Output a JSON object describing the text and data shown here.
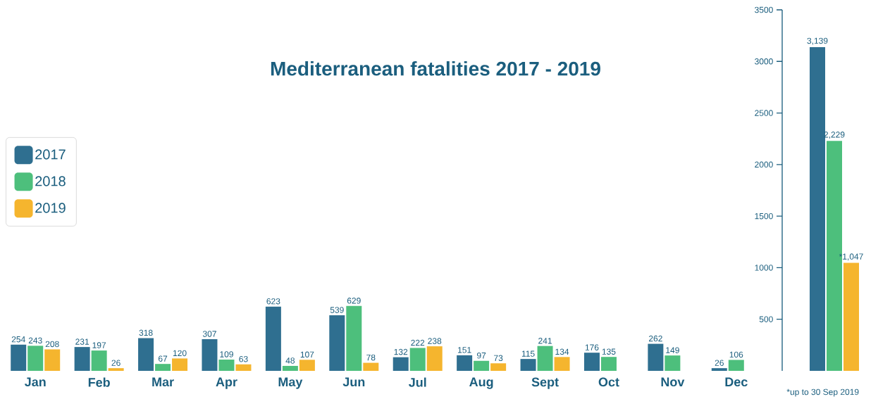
{
  "chart_data": [
    {
      "type": "bar",
      "title": "Mediterranean fatalities 2017 - 2019",
      "categories": [
        "Jan",
        "Feb",
        "Mar",
        "Apr",
        "May",
        "Jun",
        "Jul",
        "Aug",
        "Sept",
        "Oct",
        "Nov",
        "Dec"
      ],
      "series": [
        {
          "name": "2017",
          "color": "#2f6f90",
          "values": [
            254,
            231,
            318,
            307,
            623,
            539,
            132,
            151,
            115,
            176,
            262,
            26
          ]
        },
        {
          "name": "2018",
          "color": "#4dbf7c",
          "values": [
            243,
            197,
            67,
            109,
            48,
            629,
            222,
            97,
            241,
            135,
            149,
            106
          ]
        },
        {
          "name": "2019",
          "color": "#f5b52e",
          "values": [
            208,
            26,
            120,
            63,
            107,
            78,
            238,
            73,
            134,
            null,
            null,
            null
          ]
        }
      ],
      "ylim": [
        0,
        3500
      ],
      "tick_labels": "x",
      "data_labels": true,
      "legend": "left"
    },
    {
      "type": "bar",
      "categories": [
        null
      ],
      "series": [
        {
          "color": "#2f6f90",
          "values": [
            3139
          ],
          "value_labels": [
            "3,139"
          ]
        },
        {
          "color": "#4dbf7c",
          "values": [
            2229
          ],
          "value_labels": [
            "2,229"
          ]
        },
        {
          "color": "#f5b52e",
          "values": [
            1047
          ],
          "value_labels": [
            "*1,047"
          ]
        }
      ],
      "ylim": [
        0,
        3500
      ],
      "yticks": [
        500,
        1000,
        1500,
        2000,
        2500,
        3000,
        3500
      ],
      "annotations": [
        "*up to 30 Sep 2019"
      ]
    }
  ]
}
